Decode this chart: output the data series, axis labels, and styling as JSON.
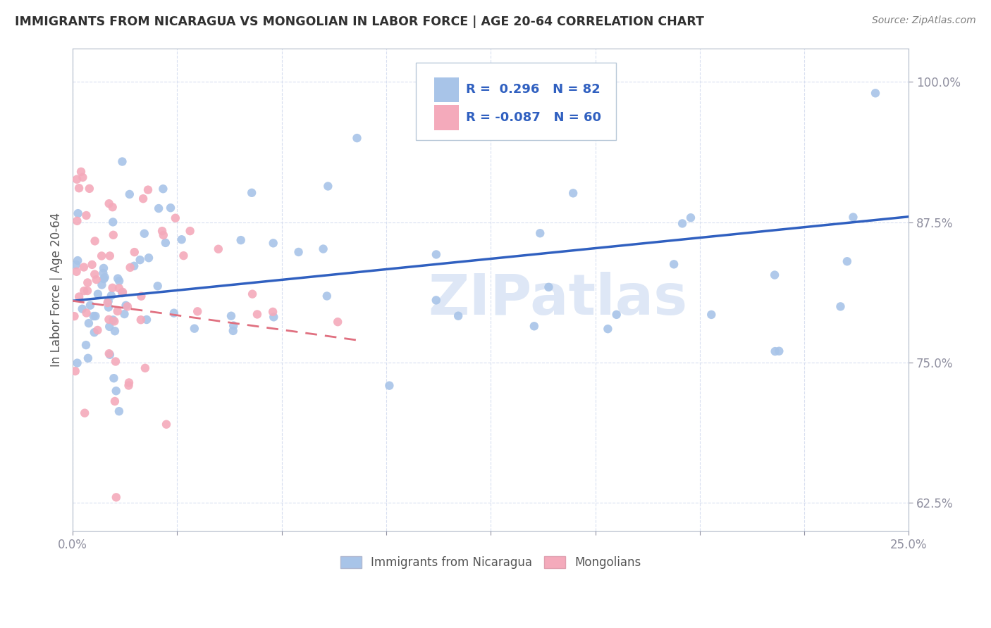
{
  "title": "IMMIGRANTS FROM NICARAGUA VS MONGOLIAN IN LABOR FORCE | AGE 20-64 CORRELATION CHART",
  "source": "Source: ZipAtlas.com",
  "ylabel_label": "In Labor Force | Age 20-64",
  "legend_blue_r": "R =  0.296",
  "legend_blue_n": "N = 82",
  "legend_pink_r": "R = -0.087",
  "legend_pink_n": "N = 60",
  "blue_color": "#A8C4E8",
  "pink_color": "#F4AABB",
  "trend_blue_color": "#3060C0",
  "trend_pink_color": "#E07080",
  "watermark_color": "#C8D8F0",
  "legend_text_color": "#3060C0",
  "title_color": "#303030",
  "axis_color": "#3060C0",
  "grid_color": "#D8DFF0",
  "xmin": 0.0,
  "xmax": 25.0,
  "ymin": 60.0,
  "ymax": 103.0,
  "yticks": [
    62.5,
    75.0,
    87.5,
    100.0
  ],
  "xticks": [
    0.0,
    3.125,
    6.25,
    9.375,
    12.5,
    15.625,
    18.75,
    21.875,
    25.0
  ],
  "blue_trend_x0": 0.0,
  "blue_trend_y0": 80.5,
  "blue_trend_x1": 25.0,
  "blue_trend_y1": 88.0,
  "pink_trend_x0": 0.0,
  "pink_trend_y0": 80.5,
  "pink_trend_x1": 8.5,
  "pink_trend_y1": 77.0
}
